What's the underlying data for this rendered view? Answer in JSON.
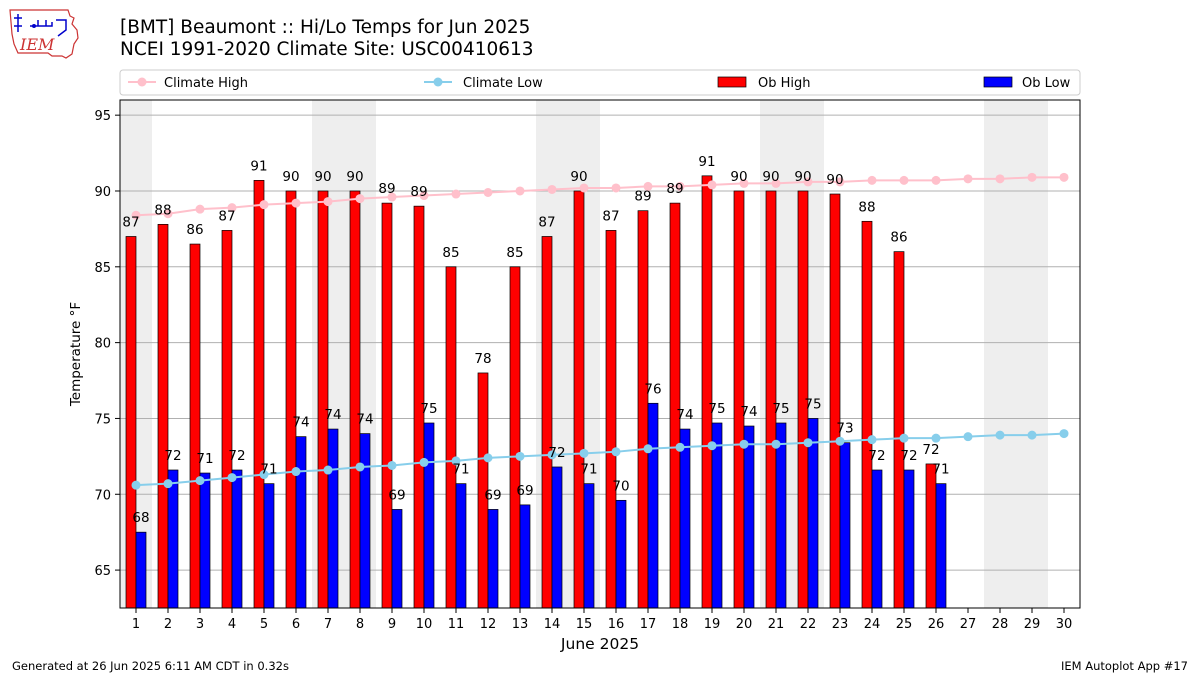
{
  "header": {
    "logo_text": "IEM",
    "title_line1": "[BMT] Beaumont :: Hi/Lo Temps for Jun 2025",
    "title_line2": "NCEI 1991-2020 Climate Site: USC00410613"
  },
  "footer": {
    "generated": "Generated at 26 Jun 2025 6:11 AM CDT in 0.32s",
    "app": "IEM Autoplot App #17"
  },
  "chart_data": {
    "type": "bar",
    "xlabel": "June 2025",
    "ylabel": "Temperature °F",
    "ylim": [
      62.5,
      96
    ],
    "yticks": [
      65,
      70,
      75,
      80,
      85,
      90,
      95
    ],
    "grid": true,
    "legend_position": "top",
    "categories": [
      "1",
      "2",
      "3",
      "4",
      "5",
      "6",
      "7",
      "8",
      "9",
      "10",
      "11",
      "12",
      "13",
      "14",
      "15",
      "16",
      "17",
      "18",
      "19",
      "20",
      "21",
      "22",
      "23",
      "24",
      "25",
      "26",
      "27",
      "28",
      "29",
      "30"
    ],
    "weekend_shading_days": [
      1,
      7,
      8,
      14,
      15,
      21,
      22,
      28,
      29
    ],
    "series": [
      {
        "name": "Climate High",
        "kind": "line",
        "color": "#ffc0cb",
        "values": [
          88.4,
          88.5,
          88.8,
          88.9,
          89.1,
          89.2,
          89.3,
          89.5,
          89.6,
          89.7,
          89.8,
          89.9,
          90.0,
          90.1,
          90.2,
          90.2,
          90.3,
          90.3,
          90.4,
          90.5,
          90.5,
          90.6,
          90.6,
          90.7,
          90.7,
          90.7,
          90.8,
          90.8,
          90.9,
          90.9
        ]
      },
      {
        "name": "Climate Low",
        "kind": "line",
        "color": "#87ceeb",
        "values": [
          70.6,
          70.7,
          70.9,
          71.1,
          71.3,
          71.5,
          71.6,
          71.8,
          71.9,
          72.1,
          72.2,
          72.4,
          72.5,
          72.6,
          72.7,
          72.8,
          73.0,
          73.1,
          73.2,
          73.3,
          73.3,
          73.4,
          73.5,
          73.6,
          73.7,
          73.7,
          73.8,
          73.9,
          73.9,
          74.0
        ]
      },
      {
        "name": "Ob High",
        "kind": "bar",
        "color": "#ff0000",
        "values": [
          87,
          88,
          86,
          87,
          91,
          90,
          90,
          90,
          89,
          89,
          85,
          78,
          85,
          87,
          90,
          87,
          89,
          89,
          91,
          90,
          90,
          90,
          90,
          88,
          86,
          72,
          null,
          null,
          null,
          null
        ],
        "bar_tops": [
          87.0,
          87.8,
          86.5,
          87.4,
          90.7,
          90.0,
          90.0,
          90.0,
          89.2,
          89.0,
          85.0,
          78.0,
          85.0,
          87.0,
          90.0,
          87.4,
          88.7,
          89.2,
          91.0,
          90.0,
          90.0,
          90.0,
          89.8,
          88.0,
          86.0,
          72.0,
          null,
          null,
          null,
          null
        ]
      },
      {
        "name": "Ob Low",
        "kind": "bar",
        "color": "#0000ff",
        "values": [
          68,
          72,
          71,
          72,
          71,
          74,
          74,
          74,
          69,
          75,
          71,
          69,
          69,
          72,
          71,
          70,
          76,
          74,
          75,
          74,
          75,
          75,
          73,
          72,
          72,
          71,
          null,
          null,
          null,
          null
        ],
        "bar_tops": [
          67.5,
          71.6,
          71.4,
          71.6,
          70.7,
          73.8,
          74.3,
          74.0,
          69.0,
          74.7,
          70.7,
          69.0,
          69.3,
          71.8,
          70.7,
          69.6,
          76.0,
          74.3,
          74.7,
          74.5,
          74.7,
          75.0,
          73.4,
          71.6,
          71.6,
          70.7,
          null,
          null,
          null,
          null
        ]
      }
    ]
  }
}
